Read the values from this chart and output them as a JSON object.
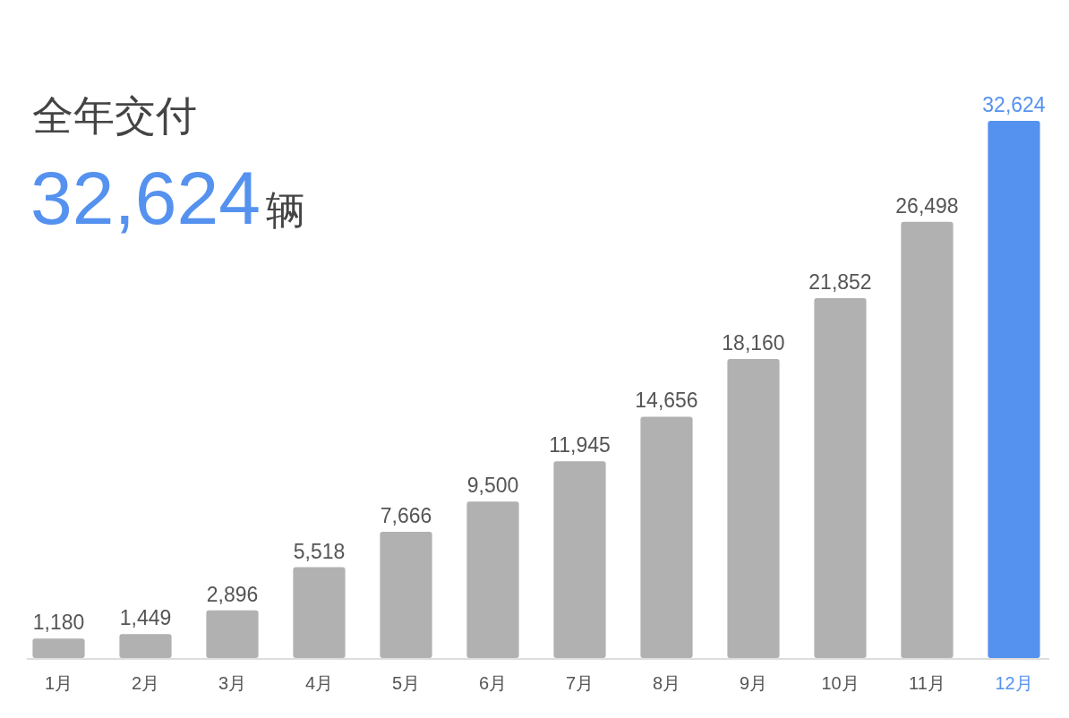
{
  "chart_data": {
    "type": "bar",
    "title": "全年交付",
    "subtitle": "32,624辆",
    "categories": [
      "1月",
      "2月",
      "3月",
      "4月",
      "5月",
      "6月",
      "7月",
      "8月",
      "9月",
      "10月",
      "11月",
      "12月"
    ],
    "values": [
      1180,
      1449,
      2896,
      5518,
      7666,
      9500,
      11945,
      14656,
      18160,
      21852,
      26498,
      32624
    ],
    "colors": [
      "#b1b1b1",
      "#b1b1b1",
      "#b1b1b1",
      "#b1b1b1",
      "#b1b1b1",
      "#b1b1b1",
      "#b1b1b1",
      "#b1b1b1",
      "#b1b1b1",
      "#b1b1b1",
      "#b1b1b1",
      "#5592ef"
    ],
    "value_labels": [
      "1,180",
      "1,449",
      "2,896",
      "5,518",
      "7,666",
      "9,500",
      "11,945",
      "14,656",
      "18,160",
      "21,852",
      "26,498",
      "32,624"
    ]
  }
}
